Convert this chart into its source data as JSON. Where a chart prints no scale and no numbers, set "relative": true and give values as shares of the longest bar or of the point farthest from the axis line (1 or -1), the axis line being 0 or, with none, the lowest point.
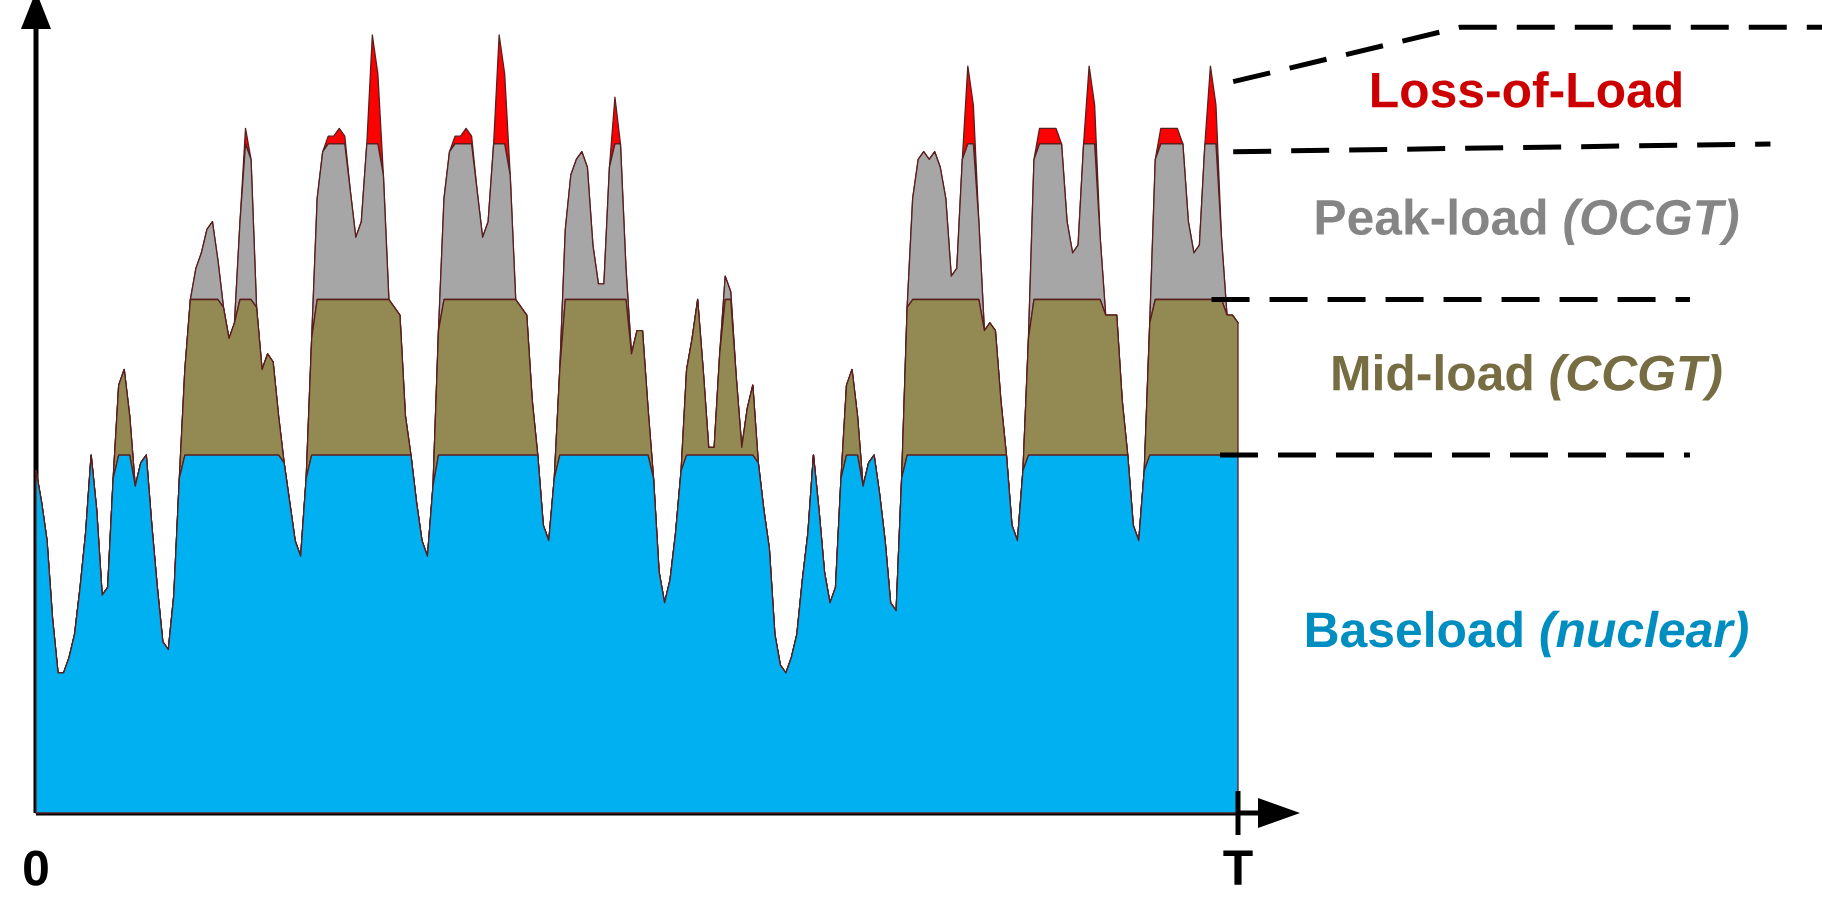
{
  "chart_data": {
    "type": "area",
    "stacked": true,
    "relative": true,
    "tick_labels": "x",
    "categories": [
      "0",
      null,
      null,
      null,
      null,
      null,
      null,
      null,
      null,
      null,
      null,
      null,
      null,
      null,
      null,
      null,
      null,
      null,
      null,
      null,
      null,
      null,
      null,
      null,
      null,
      null,
      null,
      null,
      null,
      null,
      null,
      null,
      null,
      null,
      null,
      null,
      null,
      null,
      null,
      null,
      null,
      null,
      null,
      null,
      null,
      null,
      null,
      null,
      null,
      null,
      null,
      null,
      null,
      null,
      null,
      null,
      null,
      null,
      null,
      null,
      null,
      null,
      null,
      null,
      null,
      null,
      null,
      null,
      null,
      null,
      null,
      null,
      null,
      null,
      null,
      null,
      null,
      null,
      null,
      null,
      null,
      null,
      null,
      null,
      null,
      null,
      null,
      null,
      null,
      null,
      null,
      null,
      null,
      null,
      null,
      null,
      null,
      null,
      null,
      null,
      null,
      null,
      null,
      null,
      null,
      null,
      null,
      null,
      null,
      null,
      null,
      null,
      null,
      null,
      null,
      null,
      null,
      null,
      null,
      null,
      null,
      null,
      null,
      null,
      null,
      null,
      null,
      null,
      null,
      null,
      null,
      null,
      null,
      null,
      null,
      null,
      null,
      null,
      null,
      null,
      null,
      null,
      null,
      null,
      null,
      null,
      null,
      null,
      null,
      null,
      null,
      null,
      null,
      null,
      null,
      null,
      null,
      null,
      null,
      null,
      null,
      null,
      null,
      null,
      null,
      null,
      null,
      null,
      null,
      null,
      null,
      null,
      null,
      null,
      null,
      null,
      null,
      null,
      null,
      null,
      null,
      null,
      null,
      null,
      null,
      null,
      null,
      null,
      null,
      null,
      null,
      null,
      null,
      null,
      null,
      null,
      null,
      null,
      null,
      null,
      null,
      null,
      null,
      null,
      null,
      null,
      null,
      null,
      null,
      null,
      null,
      null,
      null,
      null,
      null,
      null,
      null,
      null,
      "T"
    ],
    "series": [
      {
        "name": "Baseload *(nuclear)*",
        "color": "#00b0f0",
        "values": [
          0.44,
          0.4,
          0.35,
          0.25,
          0.18,
          0.18,
          0.2,
          0.23,
          0.29,
          0.36,
          0.46,
          0.39,
          0.28,
          0.29,
          0.43,
          0.46,
          0.46,
          0.46,
          0.42,
          0.45,
          0.46,
          0.37,
          0.29,
          0.22,
          0.21,
          0.28,
          0.43,
          0.46,
          0.46,
          0.46,
          0.46,
          0.46,
          0.46,
          0.46,
          0.46,
          0.46,
          0.46,
          0.46,
          0.46,
          0.46,
          0.46,
          0.46,
          0.46,
          0.46,
          0.46,
          0.45,
          0.4,
          0.35,
          0.33,
          0.43,
          0.46,
          0.46,
          0.46,
          0.46,
          0.46,
          0.46,
          0.46,
          0.46,
          0.46,
          0.46,
          0.46,
          0.46,
          0.46,
          0.46,
          0.46,
          0.46,
          0.46,
          0.46,
          0.46,
          0.4,
          0.35,
          0.33,
          0.42,
          0.46,
          0.46,
          0.46,
          0.46,
          0.46,
          0.46,
          0.46,
          0.46,
          0.46,
          0.46,
          0.46,
          0.46,
          0.46,
          0.46,
          0.46,
          0.46,
          0.46,
          0.46,
          0.46,
          0.37,
          0.35,
          0.43,
          0.46,
          0.46,
          0.46,
          0.46,
          0.46,
          0.46,
          0.46,
          0.46,
          0.46,
          0.46,
          0.46,
          0.46,
          0.46,
          0.46,
          0.46,
          0.46,
          0.46,
          0.43,
          0.31,
          0.27,
          0.3,
          0.36,
          0.44,
          0.46,
          0.46,
          0.46,
          0.46,
          0.46,
          0.46,
          0.46,
          0.46,
          0.46,
          0.46,
          0.46,
          0.46,
          0.46,
          0.45,
          0.39,
          0.34,
          0.23,
          0.19,
          0.18,
          0.2,
          0.23,
          0.3,
          0.36,
          0.46,
          0.39,
          0.31,
          0.27,
          0.29,
          0.43,
          0.46,
          0.46,
          0.46,
          0.42,
          0.45,
          0.46,
          0.41,
          0.35,
          0.27,
          0.26,
          0.43,
          0.46,
          0.46,
          0.46,
          0.46,
          0.46,
          0.46,
          0.46,
          0.46,
          0.46,
          0.46,
          0.46,
          0.46,
          0.46,
          0.46,
          0.46,
          0.46,
          0.46,
          0.46,
          0.46,
          0.37,
          0.35,
          0.44,
          0.46,
          0.46,
          0.46,
          0.46,
          0.46,
          0.46,
          0.46,
          0.46,
          0.46,
          0.46,
          0.46,
          0.46,
          0.46,
          0.46,
          0.46,
          0.46,
          0.46,
          0.46,
          0.46,
          0.37,
          0.35,
          0.44,
          0.46,
          0.46,
          0.46,
          0.46,
          0.46,
          0.46,
          0.46,
          0.46,
          0.46,
          0.46,
          0.46,
          0.46,
          0.46,
          0.46,
          0.46,
          0.46,
          0.46
        ]
      },
      {
        "name": "Mid-load *(CCGT)*",
        "color": "#938953",
        "values": [
          0,
          0,
          0,
          0,
          0,
          0,
          0,
          0,
          0,
          0,
          0,
          0,
          0,
          0,
          0,
          0.09,
          0.11,
          0.05,
          0,
          0,
          0,
          0,
          0,
          0,
          0,
          0,
          0,
          0.11,
          0.2,
          0.2,
          0.2,
          0.2,
          0.2,
          0.2,
          0.19,
          0.15,
          0.17,
          0.2,
          0.2,
          0.2,
          0.19,
          0.11,
          0.13,
          0.12,
          0.05,
          0,
          0,
          0,
          0,
          0,
          0.15,
          0.2,
          0.2,
          0.2,
          0.2,
          0.2,
          0.2,
          0.2,
          0.2,
          0.2,
          0.2,
          0.2,
          0.2,
          0.2,
          0.2,
          0.19,
          0.18,
          0.05,
          0,
          0,
          0,
          0,
          0,
          0.16,
          0.2,
          0.2,
          0.2,
          0.2,
          0.2,
          0.2,
          0.2,
          0.2,
          0.2,
          0.2,
          0.2,
          0.2,
          0.2,
          0.2,
          0.19,
          0.18,
          0.07,
          0,
          0,
          0,
          0,
          0.11,
          0.2,
          0.2,
          0.2,
          0.2,
          0.2,
          0.2,
          0.2,
          0.2,
          0.2,
          0.2,
          0.2,
          0.2,
          0.13,
          0.16,
          0.16,
          0.06,
          0,
          0,
          0,
          0,
          0,
          0,
          0.11,
          0.15,
          0.2,
          0.11,
          0.01,
          0.01,
          0.13,
          0.2,
          0.2,
          0.1,
          0.01,
          0.06,
          0.09,
          0,
          0,
          0,
          0,
          0,
          0,
          0,
          0,
          0,
          0,
          0,
          0,
          0,
          0,
          0,
          0,
          0.09,
          0.11,
          0.05,
          0,
          0,
          0,
          0,
          0,
          0,
          0,
          0,
          0.19,
          0.2,
          0.2,
          0.2,
          0.2,
          0.2,
          0.2,
          0.2,
          0.2,
          0.2,
          0.2,
          0.2,
          0.2,
          0.2,
          0.16,
          0.17,
          0.16,
          0.07,
          0,
          0,
          0,
          0,
          0.15,
          0.2,
          0.2,
          0.2,
          0.2,
          0.2,
          0.2,
          0.2,
          0.2,
          0.2,
          0.2,
          0.2,
          0.2,
          0.2,
          0.18,
          0.18,
          0.18,
          0.07,
          0,
          0,
          0,
          0,
          0.17,
          0.2,
          0.2,
          0.2,
          0.2,
          0.2,
          0.2,
          0.2,
          0.2,
          0.2,
          0.2,
          0.2,
          0.2,
          0.2,
          0.18,
          0.18,
          0.17
        ]
      },
      {
        "name": "Peak-load *(OCGT)*",
        "color": "#a6a6a6",
        "values": [
          0,
          0,
          0,
          0,
          0,
          0,
          0,
          0,
          0,
          0,
          0,
          0,
          0,
          0,
          0,
          0,
          0,
          0,
          0,
          0,
          0,
          0,
          0,
          0,
          0,
          0,
          0,
          0,
          0,
          0.04,
          0.06,
          0.09,
          0.1,
          0.05,
          0,
          0,
          0,
          0.1,
          0.2,
          0.18,
          0,
          0,
          0,
          0,
          0,
          0,
          0,
          0,
          0,
          0,
          0,
          0.13,
          0.19,
          0.2,
          0.2,
          0.2,
          0.2,
          0.14,
          0.08,
          0.1,
          0.2,
          0.2,
          0.2,
          0.16,
          0,
          0,
          0,
          0,
          0,
          0,
          0,
          0,
          0,
          0,
          0.13,
          0.19,
          0.2,
          0.2,
          0.2,
          0.2,
          0.14,
          0.08,
          0.1,
          0.2,
          0.2,
          0.2,
          0.16,
          0,
          0,
          0,
          0,
          0,
          0,
          0,
          0,
          0,
          0.09,
          0.16,
          0.18,
          0.19,
          0.17,
          0.07,
          0.02,
          0.02,
          0.17,
          0.2,
          0.2,
          0.04,
          0,
          0,
          0,
          0,
          0,
          0,
          0,
          0,
          0,
          0,
          0,
          0,
          0,
          0,
          0,
          0,
          0,
          0.03,
          0.01,
          0,
          0,
          0,
          0,
          0,
          0,
          0,
          0,
          0,
          0,
          0,
          0,
          0,
          0,
          0,
          0,
          0,
          0,
          0,
          0,
          0,
          0,
          0,
          0,
          0,
          0,
          0,
          0,
          0,
          0,
          0,
          0,
          0.13,
          0.18,
          0.19,
          0.18,
          0.19,
          0.17,
          0.13,
          0.03,
          0.04,
          0.18,
          0.2,
          0.2,
          0.1,
          0,
          0,
          0,
          0,
          0,
          0,
          0,
          0,
          0,
          0.18,
          0.2,
          0.2,
          0.2,
          0.2,
          0.2,
          0.1,
          0.06,
          0.07,
          0.2,
          0.2,
          0.2,
          0.08,
          0,
          0,
          0,
          0,
          0,
          0,
          0,
          0,
          0,
          0.18,
          0.2,
          0.2,
          0.2,
          0.2,
          0.2,
          0.1,
          0.06,
          0.07,
          0.2,
          0.2,
          0.2,
          0.08,
          0,
          0,
          0
        ]
      },
      {
        "name": "Loss-of-Load",
        "color": "#ff0000",
        "values": [
          0,
          0,
          0,
          0,
          0,
          0,
          0,
          0,
          0,
          0,
          0,
          0,
          0,
          0,
          0,
          0,
          0,
          0,
          0,
          0,
          0,
          0,
          0,
          0,
          0,
          0,
          0,
          0,
          0,
          0,
          0,
          0,
          0,
          0,
          0,
          0,
          0,
          0,
          0.02,
          0,
          0,
          0,
          0,
          0,
          0,
          0,
          0,
          0,
          0,
          0,
          0,
          0,
          0,
          0.01,
          0.01,
          0.02,
          0.01,
          0,
          0,
          0,
          0,
          0.14,
          0.09,
          0,
          0,
          0,
          0,
          0,
          0,
          0,
          0,
          0,
          0,
          0,
          0,
          0,
          0.01,
          0.01,
          0.02,
          0.01,
          0,
          0,
          0,
          0,
          0.14,
          0.09,
          0,
          0,
          0,
          0,
          0,
          0,
          0,
          0,
          0,
          0,
          0,
          0,
          0,
          0,
          0,
          0,
          0,
          0,
          0,
          0.06,
          0,
          0,
          0,
          0,
          0,
          0,
          0,
          0,
          0,
          0,
          0,
          0,
          0,
          0,
          0,
          0,
          0,
          0,
          0,
          0,
          0,
          0,
          0,
          0,
          0,
          0,
          0,
          0,
          0,
          0,
          0,
          0,
          0,
          0,
          0,
          0,
          0,
          0,
          0,
          0,
          0,
          0,
          0,
          0,
          0,
          0,
          0,
          0,
          0,
          0,
          0,
          0,
          0,
          0,
          0,
          0,
          0,
          0,
          0,
          0,
          0,
          0,
          0,
          0.1,
          0.05,
          0,
          0,
          0,
          0,
          0,
          0,
          0,
          0,
          0,
          0,
          0,
          0.02,
          0.02,
          0.02,
          0.02,
          0,
          0,
          0,
          0,
          0,
          0.1,
          0.05,
          0,
          0,
          0,
          0,
          0,
          0,
          0,
          0,
          0,
          0,
          0,
          0.02,
          0.02,
          0.02,
          0.02,
          0,
          0,
          0,
          0,
          0,
          0.1,
          0.05,
          0,
          0,
          0,
          0
        ]
      }
    ]
  }
}
